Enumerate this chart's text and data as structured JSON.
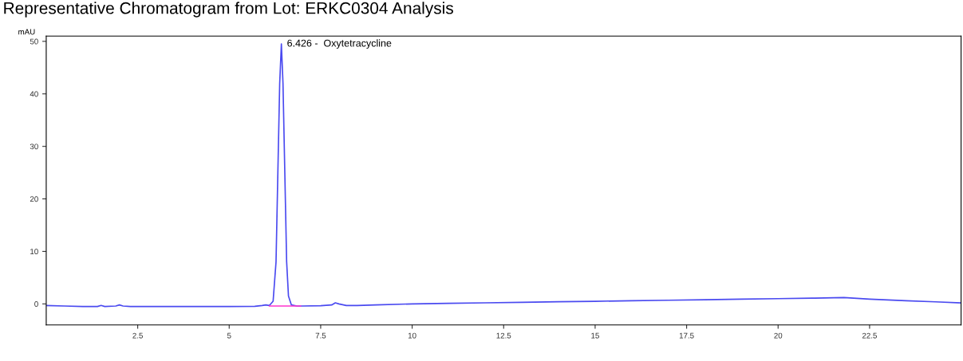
{
  "chart_data": {
    "type": "line",
    "title": "Representative Chromatogram from Lot: ERKC0304 Analysis",
    "ylabel": "mAU",
    "xlim": [
      0,
      25
    ],
    "ylim": [
      -4,
      51
    ],
    "xticks": [
      2.5,
      5,
      7.5,
      10,
      12.5,
      15,
      17.5,
      20,
      22.5
    ],
    "yticks": [
      0,
      10,
      20,
      30,
      40,
      50
    ],
    "grid": false,
    "legend": false,
    "series": [
      {
        "color": "#4a4af0",
        "x": [
          0,
          0.5,
          1.0,
          1.4,
          1.5,
          1.6,
          1.9,
          2.0,
          2.1,
          2.3,
          3,
          4,
          5,
          5.7,
          5.9,
          6.0,
          6.1,
          6.2,
          6.28,
          6.33,
          6.38,
          6.426,
          6.47,
          6.52,
          6.57,
          6.62,
          6.7,
          6.85,
          7.0,
          7.5,
          7.8,
          7.9,
          8.0,
          8.2,
          8.5,
          9,
          10,
          11,
          12,
          13,
          14,
          15,
          16,
          17,
          18,
          19,
          20,
          21,
          21.8,
          22.5,
          23.5,
          24.3,
          25
        ],
        "values": [
          -0.3,
          -0.4,
          -0.5,
          -0.5,
          -0.3,
          -0.5,
          -0.4,
          -0.2,
          -0.4,
          -0.5,
          -0.5,
          -0.5,
          -0.5,
          -0.45,
          -0.3,
          -0.2,
          -0.3,
          0.5,
          8,
          25,
          42,
          49.5,
          42,
          25,
          8,
          1.5,
          -0.2,
          -0.4,
          -0.4,
          -0.35,
          -0.2,
          0.2,
          0.0,
          -0.3,
          -0.3,
          -0.2,
          0.0,
          0.1,
          0.2,
          0.3,
          0.4,
          0.5,
          0.6,
          0.7,
          0.8,
          0.9,
          1.0,
          1.1,
          1.2,
          0.9,
          0.6,
          0.4,
          0.2
        ]
      },
      {
        "color": "#ff33cc",
        "x": [
          6.1,
          6.95
        ],
        "values": [
          -0.4,
          -0.4
        ]
      }
    ],
    "annotations": [
      {
        "text": "6.426 -  Oxytetracycline",
        "x": 6.426,
        "y": 49.5
      }
    ]
  }
}
